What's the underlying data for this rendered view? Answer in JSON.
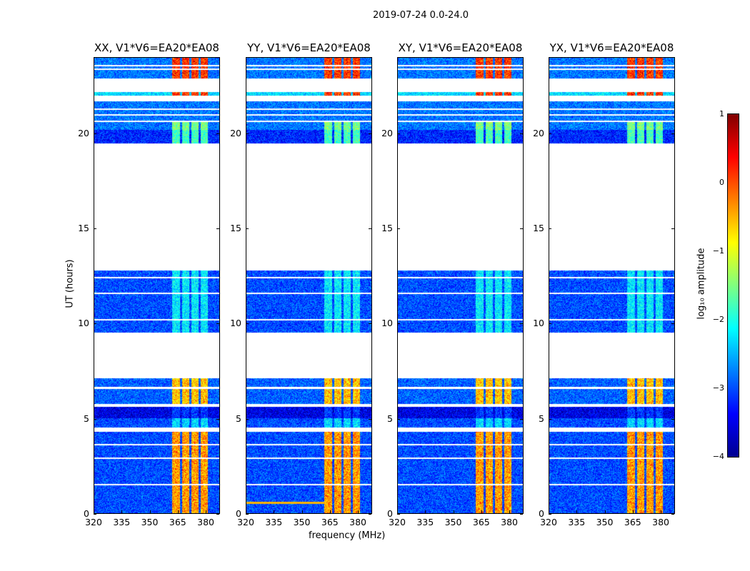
{
  "suptitle": "2019-07-24 0.0-24.0",
  "xlabel": "frequency (MHz)",
  "ylabel": "UT (hours)",
  "colorbar": {
    "label": "log₁₀ amplitude",
    "ticks": [
      "1",
      "0",
      "−1",
      "−2",
      "−3",
      "−4"
    ],
    "range": [
      -4,
      1
    ]
  },
  "chart_data": {
    "type": "heatmap",
    "title": "2019-07-24 0.0-24.0",
    "xlabel": "frequency (MHz)",
    "ylabel": "UT (hours)",
    "xlim": [
      320,
      387.6
    ],
    "ylim": [
      0,
      24
    ],
    "xticks": [
      "320",
      "335",
      "350",
      "365",
      "380"
    ],
    "xtick_values": [
      320,
      335,
      350,
      365,
      380
    ],
    "yticks": [
      "0",
      "5",
      "10",
      "15",
      "20"
    ],
    "ytick_values": [
      0,
      5,
      10,
      15,
      20
    ],
    "panels": [
      {
        "title": "XX, V1*V6=EA20*EA08"
      },
      {
        "title": "YY, V1*V6=EA20*EA08"
      },
      {
        "title": "XY, V1*V6=EA20*EA08"
      },
      {
        "title": "YX, V1*V6=EA20*EA08"
      }
    ],
    "hot_bands_mhz": [
      [
        362,
        366.5
      ],
      [
        367.5,
        371.5
      ],
      [
        372.5,
        376.5
      ],
      [
        377.5,
        381.5
      ]
    ],
    "segments_hours": [
      {
        "t": [
          0,
          4.3
        ],
        "base": -3.0,
        "hot": -0.5
      },
      {
        "t": [
          4.5,
          5.0
        ],
        "base": -3.0,
        "hot": -2.3
      },
      {
        "t": [
          5.0,
          5.6
        ],
        "base": -3.5,
        "hot": -3.1
      },
      {
        "t": [
          5.7,
          7.1
        ],
        "base": -2.9,
        "hot": -0.7
      },
      {
        "t": [
          9.5,
          12.8
        ],
        "base": -3.0,
        "hot": -2.2
      },
      {
        "t": [
          19.5,
          20.2
        ],
        "base": -3.2,
        "hot": -1.8
      },
      {
        "t": [
          20.2,
          20.6
        ],
        "base": -2.8,
        "hot": -1.5
      },
      {
        "t": [
          20.7,
          21.7
        ],
        "base": -2.8,
        "hot": -2.8
      },
      {
        "t": [
          22.0,
          22.2
        ],
        "base": -2.3,
        "hot": 0.0
      },
      {
        "t": [
          22.9,
          24.0
        ],
        "base": -2.8,
        "hot": 0.0
      }
    ],
    "flagged_rows_hours": [
      1.5,
      2.9,
      3.6,
      4.4,
      5.7,
      6.6,
      10.2,
      11.6,
      12.4,
      21.0,
      21.3,
      23.4,
      23.6
    ],
    "colorbar_range": [
      -4,
      1
    ]
  }
}
